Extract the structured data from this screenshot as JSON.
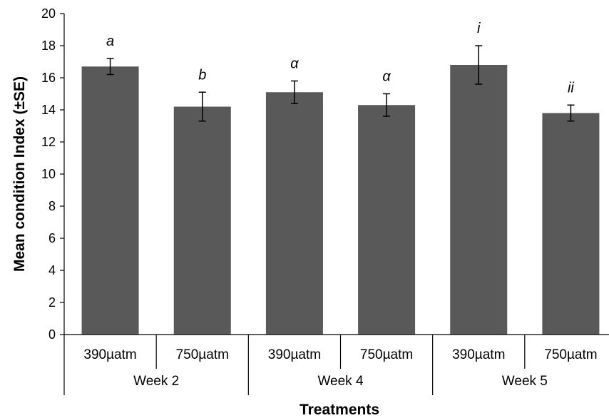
{
  "chart_data": {
    "type": "bar",
    "title": "",
    "xlabel": "Treatments",
    "ylabel": "Mean condition Index (±SE)",
    "ylim": [
      0,
      20
    ],
    "yticks": [
      0,
      2,
      4,
      6,
      8,
      10,
      12,
      14,
      16,
      18,
      20
    ],
    "grid": false,
    "bar_color": "#595959",
    "groups": [
      {
        "label": "Week 2",
        "categories": [
          "390µatm",
          "750µatm"
        ]
      },
      {
        "label": "Week 4",
        "categories": [
          "390µatm",
          "750µatm"
        ]
      },
      {
        "label": "Week 5",
        "categories": [
          "390µatm",
          "750µatm"
        ]
      }
    ],
    "bars": [
      {
        "group": "Week 2",
        "category": "390µatm",
        "value": 16.7,
        "se": 0.5,
        "label": "a"
      },
      {
        "group": "Week 2",
        "category": "750µatm",
        "value": 14.2,
        "se": 0.9,
        "label": "b"
      },
      {
        "group": "Week 4",
        "category": "390µatm",
        "value": 15.1,
        "se": 0.7,
        "label": "α"
      },
      {
        "group": "Week 4",
        "category": "750µatm",
        "value": 14.3,
        "se": 0.7,
        "label": "α"
      },
      {
        "group": "Week 5",
        "category": "390µatm",
        "value": 16.8,
        "se": 1.2,
        "label": "i"
      },
      {
        "group": "Week 5",
        "category": "750µatm",
        "value": 13.8,
        "se": 0.5,
        "label": "ii"
      }
    ]
  }
}
